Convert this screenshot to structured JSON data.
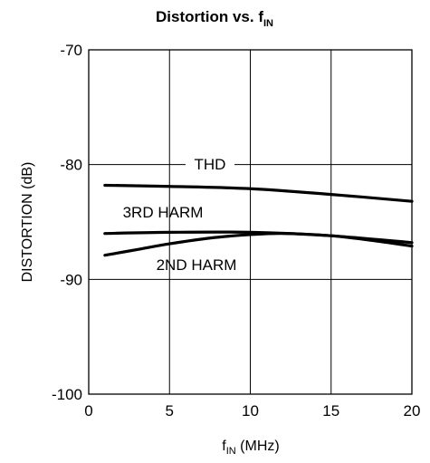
{
  "chart_data": {
    "type": "line",
    "title": "Distortion vs. f",
    "title_sub": "IN",
    "xlabel": "f",
    "xlabel_sub": "IN",
    "xlabel_unit": " (MHz)",
    "ylabel": "DISTORTION (dB)",
    "xlim": [
      0,
      20
    ],
    "ylim": [
      -100,
      -70
    ],
    "xticks": [
      0,
      5,
      10,
      15,
      20
    ],
    "yticks": [
      -100,
      -90,
      -80,
      -70
    ],
    "xtick_labels": [
      "0",
      "5",
      "10",
      "15",
      "20"
    ],
    "ytick_labels": [
      "-100",
      "-90",
      "-80",
      "-70"
    ],
    "grid": true,
    "legend": "none (inline labels)",
    "line_color": "#000000",
    "series": [
      {
        "name": "THD",
        "x": [
          1,
          5,
          10,
          15,
          20
        ],
        "y": [
          -81.8,
          -81.9,
          -82.1,
          -82.6,
          -83.2
        ]
      },
      {
        "name": "3RD HARM",
        "x": [
          1,
          5,
          10,
          15,
          20
        ],
        "y": [
          -86.0,
          -85.9,
          -85.9,
          -86.2,
          -86.8
        ]
      },
      {
        "name": "2ND HARM",
        "x": [
          1,
          3,
          5,
          7.5,
          10,
          12,
          15,
          17.5,
          20
        ],
        "y": [
          -87.9,
          -87.4,
          -86.9,
          -86.4,
          -86.1,
          -86.0,
          -86.2,
          -86.6,
          -87.1
        ]
      }
    ],
    "annotations": [
      {
        "text": "THD",
        "series": "THD"
      },
      {
        "text": "3RD HARM",
        "series": "3RD HARM"
      },
      {
        "text": "2ND HARM",
        "series": "2ND HARM"
      }
    ]
  }
}
